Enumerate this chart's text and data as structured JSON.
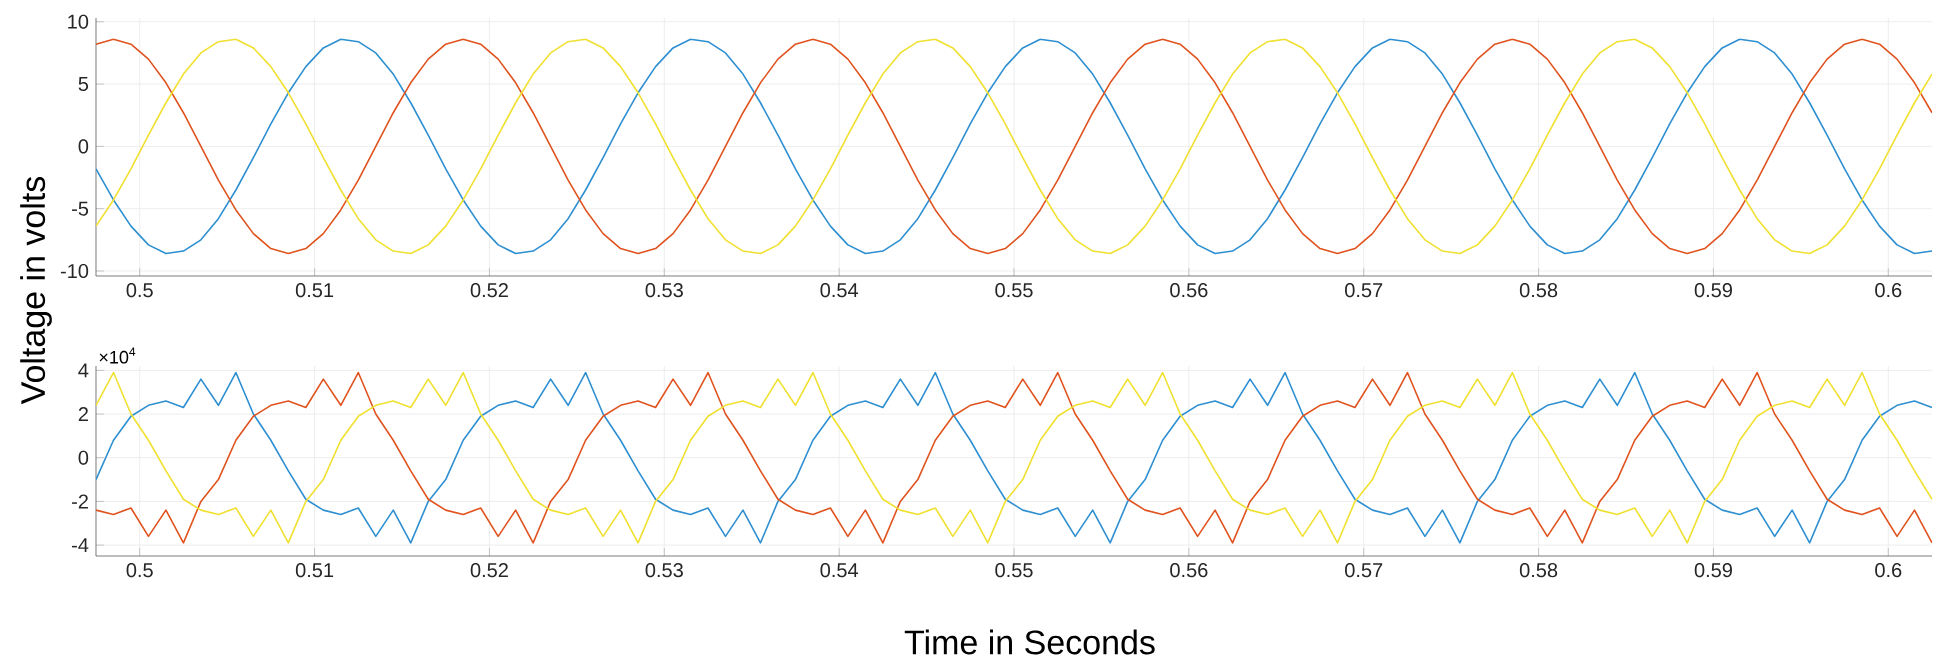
{
  "chart_data": [
    {
      "type": "line",
      "ylabel": "Voltage in volts",
      "grid": true,
      "xlim": [
        0.4975,
        0.6025
      ],
      "ylim": [
        -10.4,
        10.3
      ],
      "xticks": [
        0.5,
        0.51,
        0.52,
        0.53,
        0.54,
        0.55,
        0.56,
        0.57,
        0.58,
        0.59,
        0.6
      ],
      "yticks": [
        -10,
        -5,
        0,
        5,
        10
      ],
      "x": [
        0.4975,
        0.4985,
        0.4995,
        0.5005,
        0.5015,
        0.5025,
        0.5035,
        0.5045,
        0.5055,
        0.5065,
        0.5075,
        0.5085,
        0.5095,
        0.5105,
        0.5115,
        0.5125,
        0.5135,
        0.5145,
        0.5155,
        0.5165,
        0.5175,
        0.5185,
        0.5195,
        0.5205,
        0.5215,
        0.5225,
        0.5235,
        0.5245,
        0.5255,
        0.5265,
        0.5275,
        0.5285,
        0.5295,
        0.5305,
        0.5315,
        0.5325,
        0.5335,
        0.5345,
        0.5355,
        0.5365,
        0.5375,
        0.5385,
        0.5395,
        0.5405,
        0.5415,
        0.5425,
        0.5435,
        0.5445,
        0.5455,
        0.5465,
        0.5475,
        0.5485,
        0.5495,
        0.5505,
        0.5515,
        0.5525,
        0.5535,
        0.5545,
        0.5555,
        0.5565,
        0.5575,
        0.5585,
        0.5595,
        0.5605,
        0.5615,
        0.5625,
        0.5635,
        0.5645,
        0.5655,
        0.5665,
        0.5675,
        0.5685,
        0.5695,
        0.5705,
        0.5715,
        0.5725,
        0.5735,
        0.5745,
        0.5755,
        0.5765,
        0.5775,
        0.5785,
        0.5795,
        0.5805,
        0.5815,
        0.5825,
        0.5835,
        0.5845,
        0.5855,
        0.5865,
        0.5875,
        0.5885,
        0.5895,
        0.5905,
        0.5915,
        0.5925,
        0.5935,
        0.5945,
        0.5955,
        0.5965,
        0.5975,
        0.5985,
        0.5995,
        0.6005,
        0.6015,
        0.6025
      ],
      "series": [
        {
          "color": "#2e8fd1",
          "values": [
            -1.8,
            -4.3,
            -6.4,
            -7.9,
            -8.6,
            -8.4,
            -7.5,
            -5.8,
            -3.5,
            -0.9,
            1.8,
            4.3,
            6.4,
            7.9,
            8.6,
            8.4,
            7.5,
            5.8,
            3.5,
            0.9,
            -1.8,
            -4.3,
            -6.4,
            -7.9,
            -8.6,
            -8.4,
            -7.5,
            -5.8,
            -3.5,
            -0.9,
            1.8,
            4.3,
            6.4,
            7.9,
            8.6,
            8.4,
            7.5,
            5.8,
            3.5,
            0.9,
            -1.8,
            -4.3,
            -6.4,
            -7.9,
            -8.6,
            -8.4,
            -7.5,
            -5.8,
            -3.5,
            -0.9,
            1.8,
            4.3,
            6.4,
            7.9,
            8.6,
            8.4,
            7.5,
            5.8,
            3.5,
            0.9,
            -1.8,
            -4.3,
            -6.4,
            -7.9,
            -8.6,
            -8.4,
            -7.5,
            -5.8,
            -3.5,
            -0.9,
            1.8,
            4.3,
            6.4,
            7.9,
            8.6,
            8.4,
            7.5,
            5.8,
            3.5,
            0.9,
            -1.8,
            -4.3,
            -6.4,
            -7.9,
            -8.6,
            -8.4,
            -7.5,
            -5.8,
            -3.5,
            -0.9,
            1.8,
            4.3,
            6.4,
            7.9,
            8.6,
            8.4,
            7.5,
            5.8,
            3.5,
            0.9,
            -1.8,
            -4.3,
            -6.4,
            -7.9,
            -8.6,
            -8.4
          ]
        },
        {
          "color": "#e0531f",
          "values": [
            8.2,
            8.6,
            8.2,
            7.0,
            5.1,
            2.7,
            0,
            -2.7,
            -5.1,
            -7.0,
            -8.2,
            -8.6,
            -8.2,
            -7.0,
            -5.1,
            -2.7,
            0,
            2.7,
            5.1,
            7.0,
            8.2,
            8.6,
            8.2,
            7.0,
            5.1,
            2.7,
            0,
            -2.7,
            -5.1,
            -7.0,
            -8.2,
            -8.6,
            -8.2,
            -7.0,
            -5.1,
            -2.7,
            0,
            2.7,
            5.1,
            7.0,
            8.2,
            8.6,
            8.2,
            7.0,
            5.1,
            2.7,
            0,
            -2.7,
            -5.1,
            -7.0,
            -8.2,
            -8.6,
            -8.2,
            -7.0,
            -5.1,
            -2.7,
            0,
            2.7,
            5.1,
            7.0,
            8.2,
            8.6,
            8.2,
            7.0,
            5.1,
            2.7,
            0,
            -2.7,
            -5.1,
            -7.0,
            -8.2,
            -8.6,
            -8.2,
            -7.0,
            -5.1,
            -2.7,
            0,
            2.7,
            5.1,
            7.0,
            8.2,
            8.6,
            8.2,
            7.0,
            5.1,
            2.7,
            0,
            -2.7,
            -5.1,
            -7.0,
            -8.2,
            -8.6,
            -8.2,
            -7.0,
            -5.1,
            -2.7,
            0,
            2.7,
            5.1,
            7.0,
            8.2,
            8.6,
            8.2,
            7.0,
            5.1,
            2.7
          ]
        },
        {
          "color": "#f0e030",
          "values": [
            -6.4,
            -4.3,
            -1.8,
            0.9,
            3.5,
            5.8,
            7.5,
            8.4,
            8.6,
            7.9,
            6.4,
            4.3,
            1.8,
            -0.9,
            -3.5,
            -5.8,
            -7.5,
            -8.4,
            -8.6,
            -7.9,
            -6.4,
            -4.3,
            -1.8,
            0.9,
            3.5,
            5.8,
            7.5,
            8.4,
            8.6,
            7.9,
            6.4,
            4.3,
            1.8,
            -0.9,
            -3.5,
            -5.8,
            -7.5,
            -8.4,
            -8.6,
            -7.9,
            -6.4,
            -4.3,
            -1.8,
            0.9,
            3.5,
            5.8,
            7.5,
            8.4,
            8.6,
            7.9,
            6.4,
            4.3,
            1.8,
            -0.9,
            -3.5,
            -5.8,
            -7.5,
            -8.4,
            -8.6,
            -7.9,
            -6.4,
            -4.3,
            -1.8,
            0.9,
            3.5,
            5.8,
            7.5,
            8.4,
            8.6,
            7.9,
            6.4,
            4.3,
            1.8,
            -0.9,
            -3.5,
            -5.8,
            -7.5,
            -8.4,
            -8.6,
            -7.9,
            -6.4,
            -4.3,
            -1.8,
            0.9,
            3.5,
            5.8,
            7.5,
            8.4,
            8.6,
            7.9,
            6.4,
            4.3,
            1.8,
            -0.9,
            -3.5,
            -5.8,
            -7.5,
            -8.4,
            -8.6,
            -7.9,
            -6.4,
            -4.3,
            -1.8,
            0.9,
            3.5,
            5.8
          ]
        }
      ]
    },
    {
      "type": "line",
      "xlabel": "Time in Seconds",
      "grid": true,
      "annotations": [
        "×10$^{4}$"
      ],
      "xlim": [
        0.4975,
        0.6025
      ],
      "ylim": [
        -4.5,
        4.2
      ],
      "xticks": [
        0.5,
        0.51,
        0.52,
        0.53,
        0.54,
        0.55,
        0.56,
        0.57,
        0.58,
        0.59,
        0.6
      ],
      "yticks": [
        -4,
        -2,
        0,
        2,
        4
      ],
      "x": [
        0.4975,
        0.4985,
        0.4995,
        0.5005,
        0.5015,
        0.5025,
        0.5035,
        0.5045,
        0.5055,
        0.5065,
        0.5075,
        0.5085,
        0.5095,
        0.5105,
        0.5115,
        0.5125,
        0.5135,
        0.5145,
        0.5155,
        0.5165,
        0.5175,
        0.5185,
        0.5195,
        0.5205,
        0.5215,
        0.5225,
        0.5235,
        0.5245,
        0.5255,
        0.5265,
        0.5275,
        0.5285,
        0.5295,
        0.5305,
        0.5315,
        0.5325,
        0.5335,
        0.5345,
        0.5355,
        0.5365,
        0.5375,
        0.5385,
        0.5395,
        0.5405,
        0.5415,
        0.5425,
        0.5435,
        0.5445,
        0.5455,
        0.5465,
        0.5475,
        0.5485,
        0.5495,
        0.5505,
        0.5515,
        0.5525,
        0.5535,
        0.5545,
        0.5555,
        0.5565,
        0.5575,
        0.5585,
        0.5595,
        0.5605,
        0.5615,
        0.5625,
        0.5635,
        0.5645,
        0.5655,
        0.5665,
        0.5675,
        0.5685,
        0.5695,
        0.5705,
        0.5715,
        0.5725,
        0.5735,
        0.5745,
        0.5755,
        0.5765,
        0.5775,
        0.5785,
        0.5795,
        0.5805,
        0.5815,
        0.5825,
        0.5835,
        0.5845,
        0.5855,
        0.5865,
        0.5875,
        0.5885,
        0.5895,
        0.5905,
        0.5915,
        0.5925,
        0.5935,
        0.5945,
        0.5955,
        0.5965,
        0.5975,
        0.5985,
        0.5995,
        0.6005,
        0.6015,
        0.6025
      ],
      "series": [
        {
          "color": "#2e8fd1",
          "values": [
            -1.0,
            0.8,
            1.9,
            2.4,
            2.6,
            2.3,
            3.6,
            2.4,
            3.9,
            2.0,
            0.8,
            -0.6,
            -1.9,
            -2.4,
            -2.6,
            -2.3,
            -3.6,
            -2.4,
            -3.9,
            -2.0,
            -1.0,
            0.8,
            1.9,
            2.4,
            2.6,
            2.3,
            3.6,
            2.4,
            3.9,
            2.0,
            0.8,
            -0.6,
            -1.9,
            -2.4,
            -2.6,
            -2.3,
            -3.6,
            -2.4,
            -3.9,
            -2.0,
            -1.0,
            0.8,
            1.9,
            2.4,
            2.6,
            2.3,
            3.6,
            2.4,
            3.9,
            2.0,
            0.8,
            -0.6,
            -1.9,
            -2.4,
            -2.6,
            -2.3,
            -3.6,
            -2.4,
            -3.9,
            -2.0,
            -1.0,
            0.8,
            1.9,
            2.4,
            2.6,
            2.3,
            3.6,
            2.4,
            3.9,
            2.0,
            0.8,
            -0.6,
            -1.9,
            -2.4,
            -2.6,
            -2.3,
            -3.6,
            -2.4,
            -3.9,
            -2.0,
            -1.0,
            0.8,
            1.9,
            2.4,
            2.6,
            2.3,
            3.6,
            2.4,
            3.9,
            2.0,
            0.8,
            -0.6,
            -1.9,
            -2.4,
            -2.6,
            -2.3,
            -3.6,
            -2.4,
            -3.9,
            -2.0,
            -1.0,
            0.8,
            1.9,
            2.4,
            2.6,
            2.3
          ]
        },
        {
          "color": "#e0531f",
          "values": [
            -2.4,
            -2.6,
            -2.3,
            -3.6,
            -2.4,
            -3.9,
            -2.0,
            -1.0,
            0.8,
            1.9,
            2.4,
            2.6,
            2.3,
            3.6,
            2.4,
            3.9,
            2.0,
            0.8,
            -0.6,
            -1.9,
            -2.4,
            -2.6,
            -2.3,
            -3.6,
            -2.4,
            -3.9,
            -2.0,
            -1.0,
            0.8,
            1.9,
            2.4,
            2.6,
            2.3,
            3.6,
            2.4,
            3.9,
            2.0,
            0.8,
            -0.6,
            -1.9,
            -2.4,
            -2.6,
            -2.3,
            -3.6,
            -2.4,
            -3.9,
            -2.0,
            -1.0,
            0.8,
            1.9,
            2.4,
            2.6,
            2.3,
            3.6,
            2.4,
            3.9,
            2.0,
            0.8,
            -0.6,
            -1.9,
            -2.4,
            -2.6,
            -2.3,
            -3.6,
            -2.4,
            -3.9,
            -2.0,
            -1.0,
            0.8,
            1.9,
            2.4,
            2.6,
            2.3,
            3.6,
            2.4,
            3.9,
            2.0,
            0.8,
            -0.6,
            -1.9,
            -2.4,
            -2.6,
            -2.3,
            -3.6,
            -2.4,
            -3.9,
            -2.0,
            -1.0,
            0.8,
            1.9,
            2.4,
            2.6,
            2.3,
            3.6,
            2.4,
            3.9,
            2.0,
            0.8,
            -0.6,
            -1.9,
            -2.4,
            -2.6,
            -2.3,
            -3.6,
            -2.4,
            -3.9
          ]
        },
        {
          "color": "#f0e030",
          "values": [
            2.4,
            3.9,
            2.0,
            0.8,
            -0.6,
            -1.9,
            -2.4,
            -2.6,
            -2.3,
            -3.6,
            -2.4,
            -3.9,
            -2.0,
            -1.0,
            0.8,
            1.9,
            2.4,
            2.6,
            2.3,
            3.6,
            2.4,
            3.9,
            2.0,
            0.8,
            -0.6,
            -1.9,
            -2.4,
            -2.6,
            -2.3,
            -3.6,
            -2.4,
            -3.9,
            -2.0,
            -1.0,
            0.8,
            1.9,
            2.4,
            2.6,
            2.3,
            3.6,
            2.4,
            3.9,
            2.0,
            0.8,
            -0.6,
            -1.9,
            -2.4,
            -2.6,
            -2.3,
            -3.6,
            -2.4,
            -3.9,
            -2.0,
            -1.0,
            0.8,
            1.9,
            2.4,
            2.6,
            2.3,
            3.6,
            2.4,
            3.9,
            2.0,
            0.8,
            -0.6,
            -1.9,
            -2.4,
            -2.6,
            -2.3,
            -3.6,
            -2.4,
            -3.9,
            -2.0,
            -1.0,
            0.8,
            1.9,
            2.4,
            2.6,
            2.3,
            3.6,
            2.4,
            3.9,
            2.0,
            0.8,
            -0.6,
            -1.9,
            -2.4,
            -2.6,
            -2.3,
            -3.6,
            -2.4,
            -3.9,
            -2.0,
            -1.0,
            0.8,
            1.9,
            2.4,
            2.6,
            2.3,
            3.6,
            2.4,
            3.9,
            2.0,
            0.8,
            -0.6,
            -1.9
          ]
        }
      ]
    }
  ]
}
